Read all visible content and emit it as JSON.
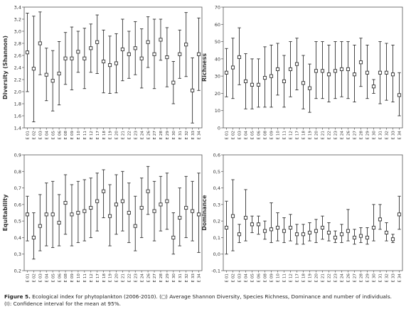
{
  "figure": {
    "caption_label": "Figure 5.",
    "caption_text": "Ecological index for phytoplankton (2006-2010). (◻) Average Shannon Diversity, Species Richness, Dominance and number of individuals.",
    "caption_line2": "(I): Confidence interval for the mean at 95%."
  },
  "chart_data": [
    {
      "type": "errorbar",
      "ylabel": "Diversity (Shannon)",
      "ylim": [
        1.4,
        3.4
      ],
      "yticks": [
        1.4,
        1.6,
        1.8,
        2.0,
        2.2,
        2.4,
        2.6,
        2.8,
        3.0,
        3.2,
        3.4
      ],
      "categories": [
        "E 01",
        "E 02",
        "E 03",
        "E 04",
        "E 05",
        "E 06",
        "E 08",
        "E 09",
        "E 10",
        "E 11",
        "E 12",
        "E 17",
        "E 18",
        "E 19",
        "E 20",
        "E 21",
        "E 22",
        "E 23",
        "E 24",
        "E 26",
        "E 27",
        "E 28",
        "E 29",
        "E 30",
        "E 31",
        "E 32",
        "E 33",
        "E 34"
      ],
      "mean": [
        2.65,
        2.38,
        2.8,
        2.28,
        2.18,
        2.3,
        2.55,
        2.55,
        2.66,
        2.55,
        2.72,
        2.82,
        2.5,
        2.44,
        2.47,
        2.7,
        2.62,
        2.72,
        2.55,
        2.82,
        2.62,
        2.86,
        2.57,
        2.15,
        2.62,
        2.78,
        2.02,
        2.62
      ],
      "lower": [
        2.0,
        1.5,
        2.28,
        1.85,
        1.68,
        1.78,
        2.12,
        2.03,
        2.32,
        2.05,
        2.32,
        2.3,
        1.98,
        1.97,
        1.98,
        2.18,
        2.22,
        2.28,
        2.06,
        2.4,
        2.05,
        2.52,
        2.08,
        1.8,
        2.22,
        2.25,
        1.48,
        2.02
      ],
      "upper": [
        3.3,
        3.25,
        3.32,
        2.72,
        2.68,
        2.83,
        2.98,
        3.07,
        3.0,
        3.05,
        3.12,
        3.27,
        3.02,
        2.92,
        2.96,
        3.2,
        3.0,
        3.16,
        3.04,
        3.24,
        3.2,
        3.2,
        3.06,
        2.5,
        3.02,
        3.31,
        2.56,
        3.22
      ]
    },
    {
      "type": "errorbar",
      "ylabel": "Richness",
      "ylim": [
        0,
        70
      ],
      "yticks": [
        0,
        10,
        20,
        30,
        40,
        50,
        60,
        70
      ],
      "categories": [
        "E 01",
        "E 02",
        "E 03",
        "E 04",
        "E 05",
        "E 06",
        "E 08",
        "E 09",
        "E 10",
        "E 11",
        "E 12",
        "E 17",
        "E 18",
        "E 19",
        "E 20",
        "E 21",
        "E 22",
        "E 23",
        "E 24",
        "E 26",
        "E 27",
        "E 28",
        "E 29",
        "E 30",
        "E 31",
        "E 32",
        "E 33",
        "E 34"
      ],
      "mean": [
        32,
        35,
        41,
        27,
        25,
        25,
        29,
        30,
        34,
        27,
        34,
        37,
        26,
        23,
        33,
        33,
        31,
        33,
        34,
        34,
        31,
        38,
        32,
        24,
        32,
        32,
        31,
        19
      ],
      "lower": [
        18,
        17,
        25,
        11,
        11,
        12,
        12,
        12,
        19,
        12,
        18,
        22,
        11,
        9,
        17,
        17,
        15,
        17,
        18,
        17,
        15,
        24,
        17,
        20,
        14,
        16,
        15,
        7
      ],
      "upper": [
        46,
        52,
        58,
        43,
        40,
        40,
        47,
        48,
        49,
        42,
        50,
        52,
        42,
        37,
        50,
        50,
        48,
        50,
        50,
        50,
        48,
        52,
        48,
        28,
        50,
        49,
        48,
        32
      ]
    },
    {
      "type": "errorbar",
      "ylabel": "Equitability",
      "ylim": [
        0.2,
        0.9
      ],
      "yticks": [
        0.2,
        0.3,
        0.4,
        0.5,
        0.6,
        0.7,
        0.8,
        0.9
      ],
      "categories": [
        "E 01",
        "E 02",
        "E 03",
        "E 04",
        "E 05",
        "E 06",
        "E 08",
        "E 09",
        "E 10",
        "E 11",
        "E 12",
        "E 17",
        "E 18",
        "E 19",
        "E 20",
        "E 21",
        "E 22",
        "E 23",
        "E 24",
        "E 26",
        "E 27",
        "E 28",
        "E 29",
        "E 30",
        "E 31",
        "E 32",
        "E 33",
        "E 34"
      ],
      "mean": [
        0.54,
        0.4,
        0.47,
        0.54,
        0.54,
        0.49,
        0.61,
        0.54,
        0.55,
        0.56,
        0.58,
        0.62,
        0.68,
        0.53,
        0.6,
        0.62,
        0.55,
        0.47,
        0.58,
        0.68,
        0.56,
        0.6,
        0.62,
        0.4,
        0.52,
        0.58,
        0.56,
        0.54
      ],
      "lower": [
        0.38,
        0.27,
        0.32,
        0.35,
        0.34,
        0.35,
        0.42,
        0.35,
        0.37,
        0.38,
        0.4,
        0.44,
        0.52,
        0.35,
        0.42,
        0.44,
        0.37,
        0.32,
        0.4,
        0.54,
        0.38,
        0.44,
        0.45,
        0.3,
        0.35,
        0.4,
        0.38,
        0.31
      ],
      "upper": [
        0.65,
        0.55,
        0.66,
        0.73,
        0.74,
        0.66,
        0.78,
        0.72,
        0.74,
        0.75,
        0.76,
        0.79,
        0.81,
        0.72,
        0.78,
        0.8,
        0.73,
        0.65,
        0.76,
        0.83,
        0.74,
        0.77,
        0.79,
        0.55,
        0.7,
        0.77,
        0.74,
        0.79
      ]
    },
    {
      "type": "errorbar",
      "ylabel": "Dominance",
      "ylim": [
        -0.1,
        0.6
      ],
      "yticks": [
        -0.1,
        0.0,
        0.1,
        0.2,
        0.3,
        0.4,
        0.5,
        0.6
      ],
      "categories": [
        "E 01",
        "E 02",
        "E 03",
        "E 04",
        "E 05",
        "E 06",
        "E 08",
        "E 09",
        "E 10",
        "E 11",
        "E 12",
        "E 17",
        "E 18",
        "E 19",
        "E 20",
        "E 21",
        "E 22",
        "E 23",
        "E 24",
        "E 26",
        "E 27",
        "E 28",
        "E 29",
        "E 30",
        "E 31",
        "E 32",
        "E 33",
        "E 34"
      ],
      "mean": [
        0.16,
        0.23,
        0.12,
        0.22,
        0.18,
        0.18,
        0.14,
        0.15,
        0.16,
        0.14,
        0.16,
        0.12,
        0.12,
        0.13,
        0.14,
        0.16,
        0.13,
        0.1,
        0.12,
        0.14,
        0.1,
        0.11,
        0.1,
        0.16,
        0.21,
        0.13,
        0.09,
        0.24
      ],
      "lower": [
        0.0,
        0.02,
        0.07,
        0.08,
        0.13,
        0.12,
        0.09,
        0.07,
        0.08,
        0.07,
        0.08,
        0.06,
        0.06,
        0.08,
        0.07,
        0.09,
        0.08,
        0.07,
        0.07,
        0.08,
        0.06,
        0.07,
        0.06,
        0.08,
        0.15,
        0.08,
        0.07,
        0.15
      ],
      "upper": [
        0.32,
        0.45,
        0.18,
        0.39,
        0.23,
        0.23,
        0.2,
        0.31,
        0.25,
        0.22,
        0.24,
        0.18,
        0.18,
        0.19,
        0.21,
        0.23,
        0.19,
        0.14,
        0.18,
        0.27,
        0.15,
        0.16,
        0.16,
        0.3,
        0.3,
        0.19,
        0.12,
        0.35
      ]
    }
  ]
}
